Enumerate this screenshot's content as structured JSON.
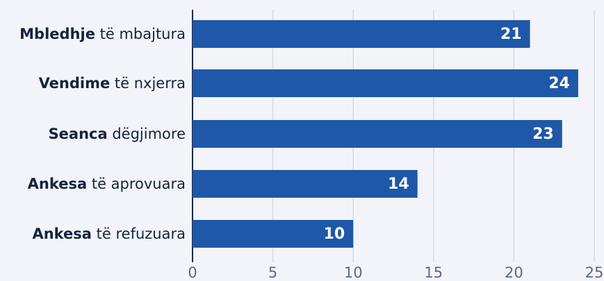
{
  "chart_data": {
    "type": "bar",
    "orientation": "horizontal",
    "categories": [
      "Mbledhje të mbajtura",
      "Vendime të nxjerra",
      "Seanca dëgjimore",
      "Ankesa të aprovuara",
      "Ankesa të refuzuara"
    ],
    "values": [
      21,
      24,
      23,
      14,
      10
    ],
    "color": "#1f58a8",
    "xlim": [
      0,
      25
    ],
    "xticks": [
      0,
      5,
      10,
      15,
      20,
      25
    ],
    "grid": true
  }
}
